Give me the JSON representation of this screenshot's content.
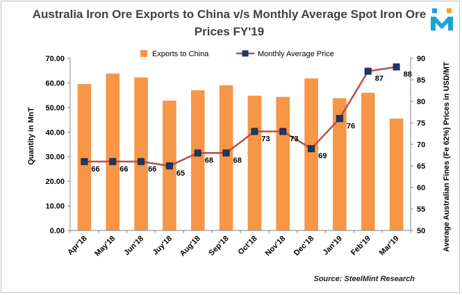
{
  "title": "Australia Iron Ore Exports to China v/s Monthly Average Spot Iron Ore Prices FY'19",
  "source": "Source: SteelMint Research",
  "logo": {
    "icon": "steelmint-m-logo",
    "colors": [
      "#1fa3d6",
      "#f7a21b"
    ]
  },
  "chart_data": {
    "type": "bar+line",
    "categories": [
      "Apr'18",
      "May'18",
      "Jun'18",
      "Juy'18",
      "Aug'18",
      "Sep'18",
      "Oct'18",
      "Nov'18",
      "Dec'18",
      "Jan'19",
      "Feb'19",
      "Mar'19"
    ],
    "series": [
      {
        "name": "Exports to China",
        "type": "bar",
        "axis": "left",
        "color": "#f79646",
        "values": [
          59.5,
          63.8,
          62.2,
          52.8,
          57.0,
          59.0,
          54.8,
          54.3,
          61.8,
          53.8,
          56.0,
          45.5
        ]
      },
      {
        "name": "Monthly Average Price",
        "type": "line",
        "axis": "right",
        "color": "#be4b48",
        "marker_color": "#1f3864",
        "values": [
          66,
          66,
          66,
          65,
          68,
          68,
          73,
          73,
          69,
          76,
          87,
          88
        ],
        "labels": [
          "66",
          "66",
          "66",
          "65",
          "68",
          "68",
          "73",
          "73",
          "69",
          "76",
          "87",
          "88"
        ]
      }
    ],
    "y_left": {
      "label": "Quantity in MnT",
      "lim": [
        0,
        70
      ],
      "ticks": [
        "0.00",
        "10.00",
        "20.00",
        "30.00",
        "40.00",
        "50.00",
        "60.00",
        "70.00"
      ]
    },
    "y_right": {
      "label": "Average Australian  Fines  (Fe 62%) Prices in USD/MT",
      "lim": [
        50,
        90
      ],
      "ticks": [
        "50",
        "55",
        "60",
        "65",
        "70",
        "75",
        "80",
        "85",
        "90"
      ]
    },
    "legend_position": "top-center",
    "grid": false
  }
}
